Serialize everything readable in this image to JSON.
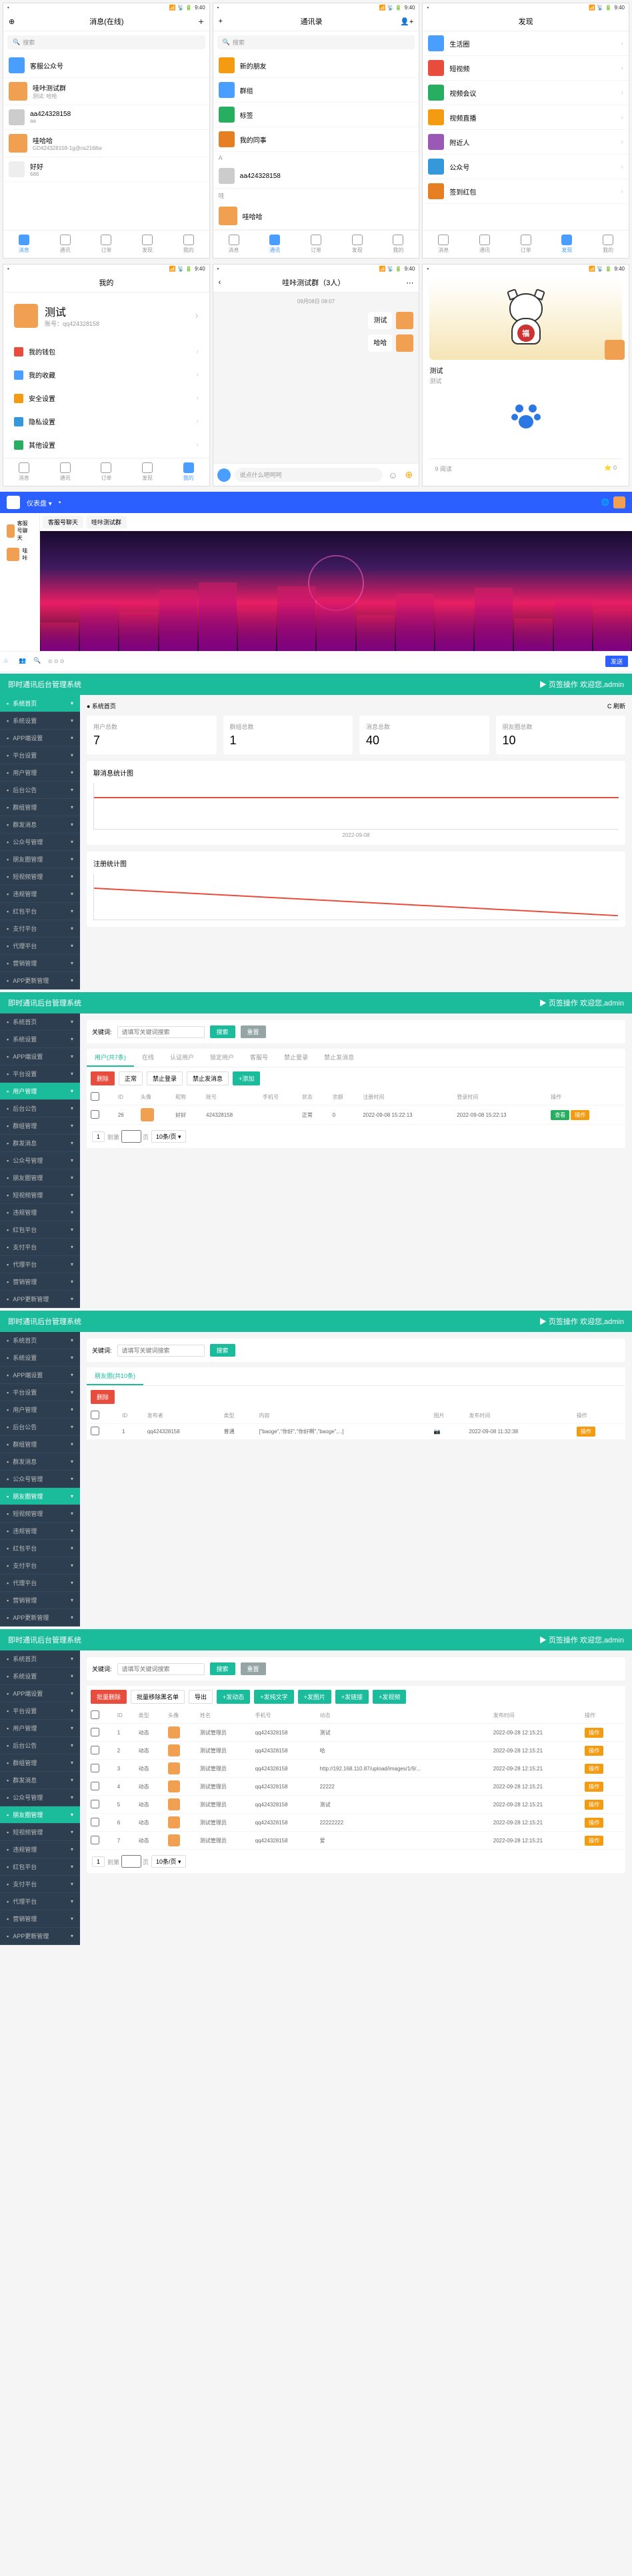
{
  "status": {
    "time": "9:40",
    "signal": "📶",
    "wifi": "📡",
    "battery": "🔋"
  },
  "colors": {
    "primary": "#4a9eff",
    "teal": "#1abc9c",
    "dark": "#2c3e50",
    "orange": "#f39c12"
  },
  "screens": {
    "messages": {
      "title": "消息(在线)",
      "search": "搜索",
      "items": [
        {
          "name": "客服公众号",
          "icon_bg": "#4a9eff"
        },
        {
          "name": "哇咔测试群",
          "sub": "测试: 哈哈",
          "avatar": true
        },
        {
          "name": "aa424328158",
          "sub": "aa",
          "icon_bg": "#ccc"
        },
        {
          "name": "哇哈哈",
          "sub": "GD424328158-1g@ns2168w",
          "avatar": true
        },
        {
          "name": "好好",
          "sub": "666",
          "icon_bg": "#eee"
        }
      ]
    },
    "contacts": {
      "title": "通讯录",
      "groups": [
        {
          "name": "新的朋友",
          "bg": "#f39c12"
        },
        {
          "name": "群组",
          "bg": "#4a9eff"
        },
        {
          "name": "标签",
          "bg": "#27ae60"
        },
        {
          "name": "我的同事",
          "bg": "#e67e22"
        }
      ],
      "letter": "A",
      "contacts": [
        {
          "name": "aa424328158"
        }
      ],
      "letter2": "哇",
      "contacts2": [
        {
          "name": "哇哈哈"
        }
      ]
    },
    "discover": {
      "title": "发现",
      "items": [
        {
          "name": "生活圈",
          "bg": "#4a9eff"
        },
        {
          "name": "短视频",
          "bg": "#e74c3c"
        },
        {
          "name": "视频会议",
          "bg": "#27ae60"
        },
        {
          "name": "视频直播",
          "bg": "#f39c12"
        },
        {
          "name": "附近人",
          "bg": "#9b59b6"
        },
        {
          "name": "公众号",
          "bg": "#3498db"
        },
        {
          "name": "签到红包",
          "bg": "#e67e22"
        }
      ]
    },
    "mine": {
      "title": "我的",
      "profile": {
        "name": "测试",
        "id": "账号：qq424328158"
      },
      "settings": [
        {
          "name": "我的钱包",
          "bg": "#e74c3c"
        },
        {
          "name": "我的收藏",
          "bg": "#4a9eff"
        },
        {
          "name": "安全设置",
          "bg": "#f39c12"
        },
        {
          "name": "隐私设置",
          "bg": "#3498db"
        },
        {
          "name": "其他设置",
          "bg": "#27ae60"
        }
      ]
    },
    "chat": {
      "title": "哇咔测试群（3人）",
      "date": "09月08日 08:07",
      "msgs": [
        "测试",
        "哈哈"
      ],
      "placeholder": "说点什么吧呵呵"
    },
    "card": {
      "name": "测试",
      "sub": "测试",
      "footer_l": "9 阅读",
      "footer_r": "⭐ 0"
    }
  },
  "nav": {
    "items": [
      "消息",
      "通讯",
      "订单",
      "发现",
      "我的"
    ]
  },
  "web": {
    "tabs": [
      "客服号聊天",
      "哇咔测试群"
    ],
    "sidebar": [
      {
        "name": "客服号聊天"
      },
      {
        "name": "哇咔"
      }
    ],
    "send": "发送"
  },
  "admin": {
    "title": "即时通讯后台管理系统",
    "header_right": "▶ 页签操作  欢迎您,admin",
    "refresh": "C 刷新",
    "menu": [
      "系统首页",
      "系统设置",
      "APP端设置",
      "平台设置",
      "用户管理",
      "后台公告",
      "群组管理",
      "群发消息",
      "公众号管理",
      "朋友圈管理",
      "短视频管理",
      "违规管理",
      "红包平台",
      "支付平台",
      "代理平台",
      "营销管理",
      "APP更新管理"
    ],
    "stats": [
      {
        "label": "用户总数",
        "value": "7"
      },
      {
        "label": "群组总数",
        "value": "1"
      },
      {
        "label": "消息总数",
        "value": "40"
      },
      {
        "label": "朋友圈总数",
        "value": "10"
      }
    ],
    "chart1": "聊消息统计图",
    "chart2": "注册统计图",
    "filter": {
      "keyword_label": "关键词:",
      "keyword_ph": "请填写关键词搜索",
      "search": "搜索",
      "reset": "重置"
    },
    "tabs2": [
      "用户(共7条)",
      "在线",
      "认证用户",
      "锁定用户",
      "客服号",
      "禁止登录",
      "禁止发消息"
    ],
    "batch": [
      "删除",
      "正常",
      "禁止登录",
      "禁止发消息",
      "+添加"
    ],
    "table_headers": [
      "ID",
      "头像",
      "昵称",
      "账号",
      "手机号",
      "状态",
      "余额",
      "注册时间",
      "登录时间",
      "操作"
    ],
    "table_rows": [
      {
        "id": "26",
        "nick": "好好",
        "acc": "424328158",
        "phone": "",
        "state": "正常",
        "bal": "0",
        "reg": "2022-09-08 15:22:13",
        "login": "2022-09-08 15:22:13"
      }
    ],
    "circle_tabs": [
      "朋友圈(共10条)"
    ],
    "circle_batch": [
      "删除"
    ],
    "circle_headers": [
      "ID",
      "发布者",
      "类型",
      "内容",
      "图片",
      "发布时间",
      "操作"
    ],
    "circle_rows": [
      {
        "id": "1",
        "user": "qq424328158",
        "type": "普通",
        "content": "[\"baoge\",\"你好\",\"你好啊\",\"baoge\",...]",
        "time": "2022-09-08 11:32:38"
      }
    ],
    "moments_batch": [
      "批量删除",
      "批量移除黑名单",
      "导出",
      "+发动态",
      "+发纯文字",
      "+发图片",
      "+发链接",
      "+发视频"
    ],
    "moments_headers": [
      "ID",
      "类型",
      "头像",
      "姓名",
      "手机号",
      "动态",
      "发布时间",
      "操作"
    ],
    "moments_rows": [
      {
        "id": "1",
        "type": "动态",
        "name": "测试管理员",
        "phone": "qq424328158",
        "content": "测试",
        "time": "2022-09-28 12:15:21"
      },
      {
        "id": "2",
        "type": "动态",
        "name": "测试管理员",
        "phone": "qq424328158",
        "content": "哈",
        "time": "2022-09-28 12:15:21"
      },
      {
        "id": "3",
        "type": "动态",
        "name": "测试管理员",
        "phone": "qq424328158",
        "content": "http://192.168.110.87/upload/images/1/9/...",
        "time": "2022-09-28 12:15:21"
      },
      {
        "id": "4",
        "type": "动态",
        "name": "测试管理员",
        "phone": "qq424328158",
        "content": "22222",
        "time": "2022-09-28 12:15:21"
      },
      {
        "id": "5",
        "type": "动态",
        "name": "测试管理员",
        "phone": "qq424328158",
        "content": "测试",
        "time": "2022-09-28 12:15:21"
      },
      {
        "id": "6",
        "type": "动态",
        "name": "测试管理员",
        "phone": "qq424328158",
        "content": "22222222",
        "time": "2022-09-28 12:15:21"
      },
      {
        "id": "7",
        "type": "动态",
        "name": "测试管理员",
        "phone": "qq424328158",
        "content": "爱",
        "time": "2022-09-28 12:15:21"
      }
    ],
    "action_label": "操作"
  }
}
